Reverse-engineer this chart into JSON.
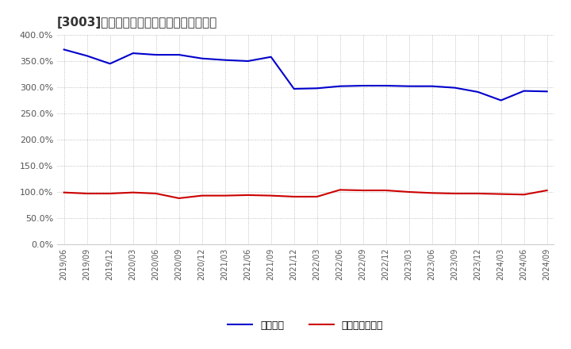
{
  "title": "[3003]　固定比率、固定長期適合率の推移",
  "x_labels": [
    "2019/06",
    "2019/09",
    "2019/12",
    "2020/03",
    "2020/06",
    "2020/09",
    "2020/12",
    "2021/03",
    "2021/06",
    "2021/09",
    "2021/12",
    "2022/03",
    "2022/06",
    "2022/09",
    "2022/12",
    "2023/03",
    "2023/06",
    "2023/09",
    "2023/12",
    "2024/03",
    "2024/06",
    "2024/09"
  ],
  "blue_values": [
    372,
    360,
    345,
    365,
    362,
    362,
    355,
    352,
    350,
    358,
    297,
    298,
    302,
    303,
    303,
    302,
    302,
    299,
    291,
    275,
    293,
    292
  ],
  "red_values": [
    99,
    97,
    97,
    99,
    97,
    88,
    93,
    93,
    94,
    93,
    91,
    91,
    104,
    103,
    103,
    100,
    98,
    97,
    97,
    96,
    95,
    103
  ],
  "blue_color": "#0000cc",
  "red_color": "#cc0000",
  "ylim": [
    0,
    400
  ],
  "yticks": [
    0,
    50,
    100,
    150,
    200,
    250,
    300,
    350,
    400
  ],
  "background_color": "#ffffff",
  "plot_bg_color": "#ffffff",
  "grid_color": "#b0b0b0",
  "legend_blue": "固定比率",
  "legend_red": "固定長期適合率",
  "title_color": "#333333",
  "tick_color": "#555555"
}
